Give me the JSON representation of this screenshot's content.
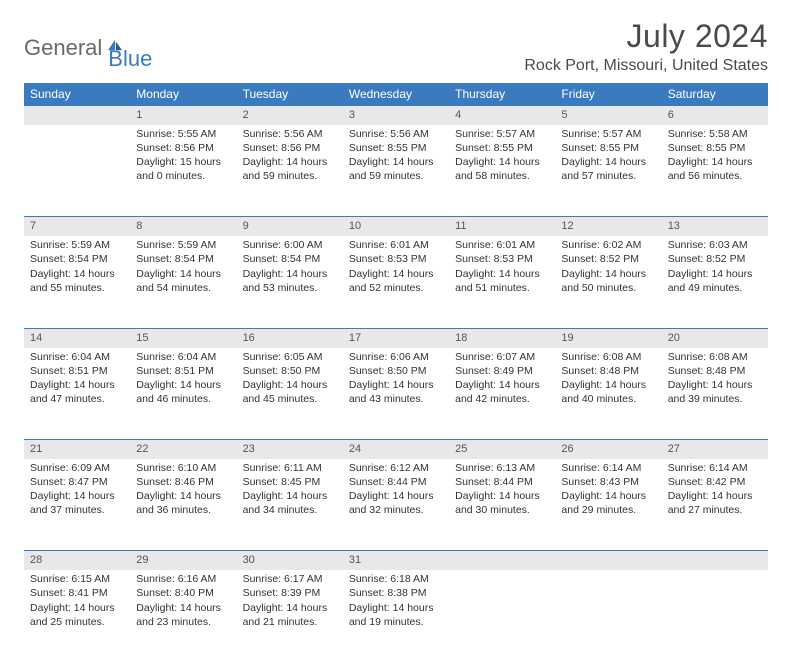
{
  "logo": {
    "part1": "General",
    "part2": "Blue"
  },
  "title": "July 2024",
  "location": "Rock Port, Missouri, United States",
  "colors": {
    "header_bg": "#3a7bbf",
    "header_text": "#ffffff",
    "daynum_bg": "#e8e8e8",
    "border": "#3a7bbf",
    "text": "#333333",
    "logo_gray": "#6a6a6a",
    "logo_blue": "#3a7bbf"
  },
  "typography": {
    "title_fontsize": 32,
    "location_fontsize": 16,
    "dayhead_fontsize": 12,
    "cell_fontsize": 10.5
  },
  "day_headers": [
    "Sunday",
    "Monday",
    "Tuesday",
    "Wednesday",
    "Thursday",
    "Friday",
    "Saturday"
  ],
  "start_offset": 1,
  "days": [
    {
      "n": 1,
      "sunrise": "5:55 AM",
      "sunset": "8:56 PM",
      "daylight": "15 hours and 0 minutes."
    },
    {
      "n": 2,
      "sunrise": "5:56 AM",
      "sunset": "8:56 PM",
      "daylight": "14 hours and 59 minutes."
    },
    {
      "n": 3,
      "sunrise": "5:56 AM",
      "sunset": "8:55 PM",
      "daylight": "14 hours and 59 minutes."
    },
    {
      "n": 4,
      "sunrise": "5:57 AM",
      "sunset": "8:55 PM",
      "daylight": "14 hours and 58 minutes."
    },
    {
      "n": 5,
      "sunrise": "5:57 AM",
      "sunset": "8:55 PM",
      "daylight": "14 hours and 57 minutes."
    },
    {
      "n": 6,
      "sunrise": "5:58 AM",
      "sunset": "8:55 PM",
      "daylight": "14 hours and 56 minutes."
    },
    {
      "n": 7,
      "sunrise": "5:59 AM",
      "sunset": "8:54 PM",
      "daylight": "14 hours and 55 minutes."
    },
    {
      "n": 8,
      "sunrise": "5:59 AM",
      "sunset": "8:54 PM",
      "daylight": "14 hours and 54 minutes."
    },
    {
      "n": 9,
      "sunrise": "6:00 AM",
      "sunset": "8:54 PM",
      "daylight": "14 hours and 53 minutes."
    },
    {
      "n": 10,
      "sunrise": "6:01 AM",
      "sunset": "8:53 PM",
      "daylight": "14 hours and 52 minutes."
    },
    {
      "n": 11,
      "sunrise": "6:01 AM",
      "sunset": "8:53 PM",
      "daylight": "14 hours and 51 minutes."
    },
    {
      "n": 12,
      "sunrise": "6:02 AM",
      "sunset": "8:52 PM",
      "daylight": "14 hours and 50 minutes."
    },
    {
      "n": 13,
      "sunrise": "6:03 AM",
      "sunset": "8:52 PM",
      "daylight": "14 hours and 49 minutes."
    },
    {
      "n": 14,
      "sunrise": "6:04 AM",
      "sunset": "8:51 PM",
      "daylight": "14 hours and 47 minutes."
    },
    {
      "n": 15,
      "sunrise": "6:04 AM",
      "sunset": "8:51 PM",
      "daylight": "14 hours and 46 minutes."
    },
    {
      "n": 16,
      "sunrise": "6:05 AM",
      "sunset": "8:50 PM",
      "daylight": "14 hours and 45 minutes."
    },
    {
      "n": 17,
      "sunrise": "6:06 AM",
      "sunset": "8:50 PM",
      "daylight": "14 hours and 43 minutes."
    },
    {
      "n": 18,
      "sunrise": "6:07 AM",
      "sunset": "8:49 PM",
      "daylight": "14 hours and 42 minutes."
    },
    {
      "n": 19,
      "sunrise": "6:08 AM",
      "sunset": "8:48 PM",
      "daylight": "14 hours and 40 minutes."
    },
    {
      "n": 20,
      "sunrise": "6:08 AM",
      "sunset": "8:48 PM",
      "daylight": "14 hours and 39 minutes."
    },
    {
      "n": 21,
      "sunrise": "6:09 AM",
      "sunset": "8:47 PM",
      "daylight": "14 hours and 37 minutes."
    },
    {
      "n": 22,
      "sunrise": "6:10 AM",
      "sunset": "8:46 PM",
      "daylight": "14 hours and 36 minutes."
    },
    {
      "n": 23,
      "sunrise": "6:11 AM",
      "sunset": "8:45 PM",
      "daylight": "14 hours and 34 minutes."
    },
    {
      "n": 24,
      "sunrise": "6:12 AM",
      "sunset": "8:44 PM",
      "daylight": "14 hours and 32 minutes."
    },
    {
      "n": 25,
      "sunrise": "6:13 AM",
      "sunset": "8:44 PM",
      "daylight": "14 hours and 30 minutes."
    },
    {
      "n": 26,
      "sunrise": "6:14 AM",
      "sunset": "8:43 PM",
      "daylight": "14 hours and 29 minutes."
    },
    {
      "n": 27,
      "sunrise": "6:14 AM",
      "sunset": "8:42 PM",
      "daylight": "14 hours and 27 minutes."
    },
    {
      "n": 28,
      "sunrise": "6:15 AM",
      "sunset": "8:41 PM",
      "daylight": "14 hours and 25 minutes."
    },
    {
      "n": 29,
      "sunrise": "6:16 AM",
      "sunset": "8:40 PM",
      "daylight": "14 hours and 23 minutes."
    },
    {
      "n": 30,
      "sunrise": "6:17 AM",
      "sunset": "8:39 PM",
      "daylight": "14 hours and 21 minutes."
    },
    {
      "n": 31,
      "sunrise": "6:18 AM",
      "sunset": "8:38 PM",
      "daylight": "14 hours and 19 minutes."
    }
  ],
  "labels": {
    "sunrise": "Sunrise:",
    "sunset": "Sunset:",
    "daylight": "Daylight:"
  }
}
